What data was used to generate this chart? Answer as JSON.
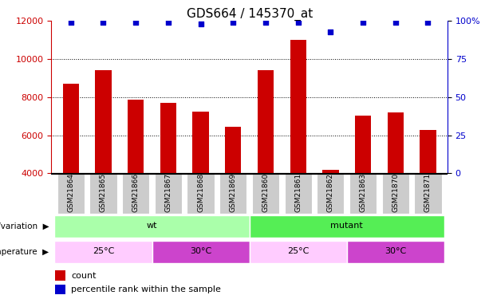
{
  "title": "GDS664 / 145370_at",
  "samples": [
    "GSM21864",
    "GSM21865",
    "GSM21866",
    "GSM21867",
    "GSM21868",
    "GSM21869",
    "GSM21860",
    "GSM21861",
    "GSM21862",
    "GSM21863",
    "GSM21870",
    "GSM21871"
  ],
  "counts": [
    8700,
    9400,
    7850,
    7700,
    7250,
    6450,
    9400,
    11000,
    4200,
    7050,
    7200,
    6300
  ],
  "percentile_ranks": [
    99,
    99,
    99,
    99,
    98,
    99,
    99,
    99,
    93,
    99,
    99,
    99
  ],
  "ylim_left": [
    4000,
    12000
  ],
  "ylim_right": [
    0,
    100
  ],
  "yticks_left": [
    4000,
    6000,
    8000,
    10000,
    12000
  ],
  "yticks_right": [
    0,
    25,
    50,
    75,
    100
  ],
  "bar_color": "#cc0000",
  "dot_color": "#0000cc",
  "bar_width": 0.5,
  "genotype_label": "genotype/variation",
  "temperature_label": "temperature",
  "wt_color": "#aaffaa",
  "mutant_color": "#55ee55",
  "temp_25_color": "#ffccff",
  "temp_30_color": "#cc44cc",
  "sample_box_color": "#cccccc",
  "legend_count_color": "#cc0000",
  "legend_percentile_color": "#0000cc",
  "title_fontsize": 11,
  "tick_fontsize": 8,
  "label_fontsize": 8,
  "annot_fontsize": 8
}
